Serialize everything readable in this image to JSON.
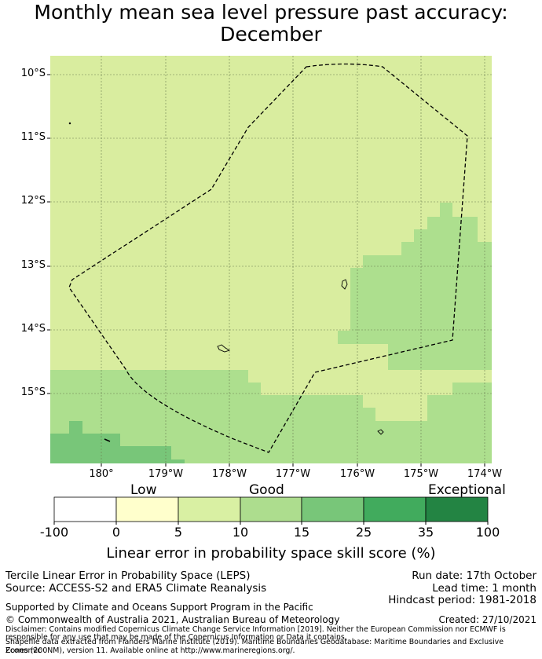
{
  "title": {
    "line1": "Monthly mean sea level pressure past accuracy:",
    "line2": "December"
  },
  "map": {
    "lat_labels": [
      "10°S",
      "11°S",
      "12°S",
      "13°S",
      "14°S",
      "15°S"
    ],
    "lon_labels": [
      "180°",
      "179°W",
      "178°W",
      "177°W",
      "176°W",
      "175°W",
      "174°W"
    ],
    "colors": {
      "good_light": "#d9ed9f",
      "good": "#addf8e",
      "good_high": "#78c679"
    }
  },
  "colorbar": {
    "category_labels": [
      "Low",
      "Good",
      "Exceptional"
    ],
    "tick_labels": [
      "-100",
      "0",
      "5",
      "10",
      "15",
      "25",
      "35",
      "100"
    ],
    "colors": [
      "#ffffff",
      "#ffffcc",
      "#d9f0a3",
      "#addd8e",
      "#78c679",
      "#41ab5d",
      "#238443"
    ],
    "axis_label": "Linear error in probability space skill score (%)"
  },
  "footer": {
    "left_line1": "Tercile Linear Error in Probability Space (LEPS)",
    "left_line2": "Source: ACCESS-S2 and ERA5 Climate Reanalysis",
    "right_line1": "Run date: 17th October",
    "right_line2": "Lead time: 1 month",
    "right_line3": "Hindcast period: 1981-2018",
    "supported": "Supported by Climate and Oceans Support Program in the Pacific",
    "copyright": "© Commonwealth of Australia 2021, Australian Bureau of Meteorology",
    "created": "Created: 27/10/2021",
    "disclaimer1": "Disclaimer: Contains modified Copernicus Climate Change Service Information [2019]. Neither the European Commission nor ECMWF is",
    "disclaimer2": "responsible for any use that may be made of the Copernicus Information or Data it contains.",
    "disclaimer3": "Shapefile data extracted from Flanders Marine Institute (2019). Maritime Boundaries Geodatabase: Maritime Boundaries and Exclusive Economic",
    "disclaimer4": "Zones (200NM), version 11. Available online at http://www.marineregions.org/."
  }
}
